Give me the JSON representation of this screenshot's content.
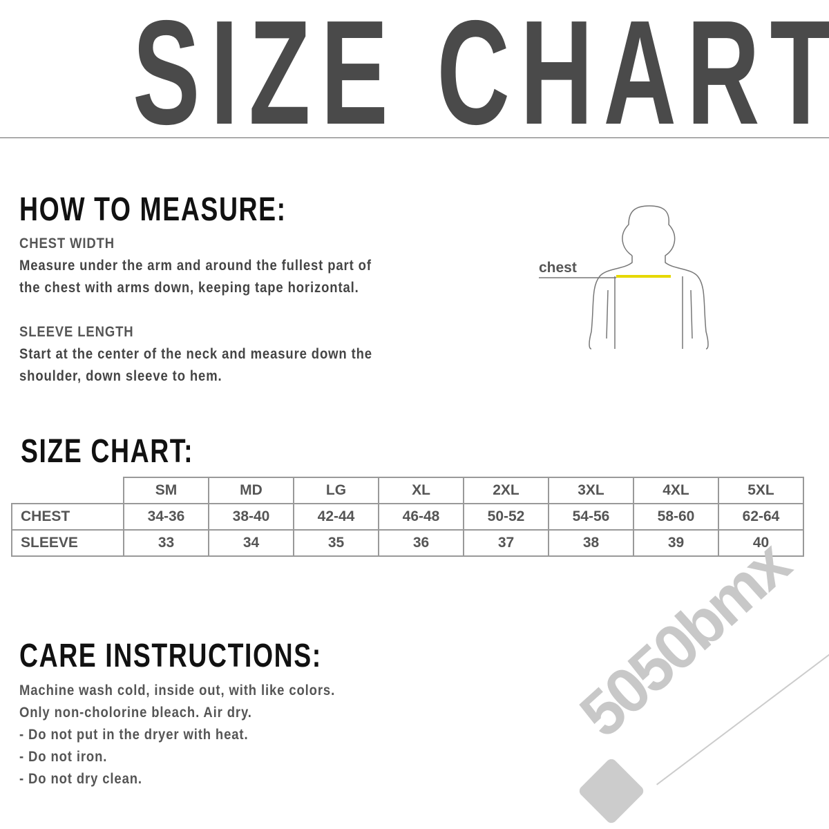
{
  "title": "SIZE CHART",
  "measure": {
    "heading": "HOW TO MEASURE:",
    "chest_title": "CHEST WIDTH",
    "chest_lines": [
      "Measure under the arm and around the fullest part of",
      "the chest with arms down, keeping tape horizontal."
    ],
    "sleeve_title": "SLEEVE LENGTH",
    "sleeve_lines": [
      "Start at the center of the neck and measure down the",
      "shoulder, down sleeve to hem."
    ],
    "diagram_label": "chest",
    "tape_color": "#e6d800"
  },
  "size_chart": {
    "heading": "SIZE CHART:",
    "sizes": [
      "SM",
      "MD",
      "LG",
      "XL",
      "2XL",
      "3XL",
      "4XL",
      "5XL"
    ],
    "rows": [
      {
        "label": "CHEST",
        "values": [
          "34-36",
          "38-40",
          "42-44",
          "46-48",
          "50-52",
          "54-56",
          "58-60",
          "62-64"
        ]
      },
      {
        "label": "SLEEVE",
        "values": [
          "33",
          "34",
          "35",
          "36",
          "37",
          "38",
          "39",
          "40"
        ]
      }
    ]
  },
  "care": {
    "heading": "CARE INSTRUCTIONS:",
    "lines": [
      "Machine wash cold, inside out, with like colors.",
      "Only non-cholorine bleach.  Air dry.",
      "- Do not put in the dryer with heat.",
      "- Do not iron.",
      "- Do not dry clean."
    ]
  },
  "logo": {
    "text": "5050bmx"
  }
}
